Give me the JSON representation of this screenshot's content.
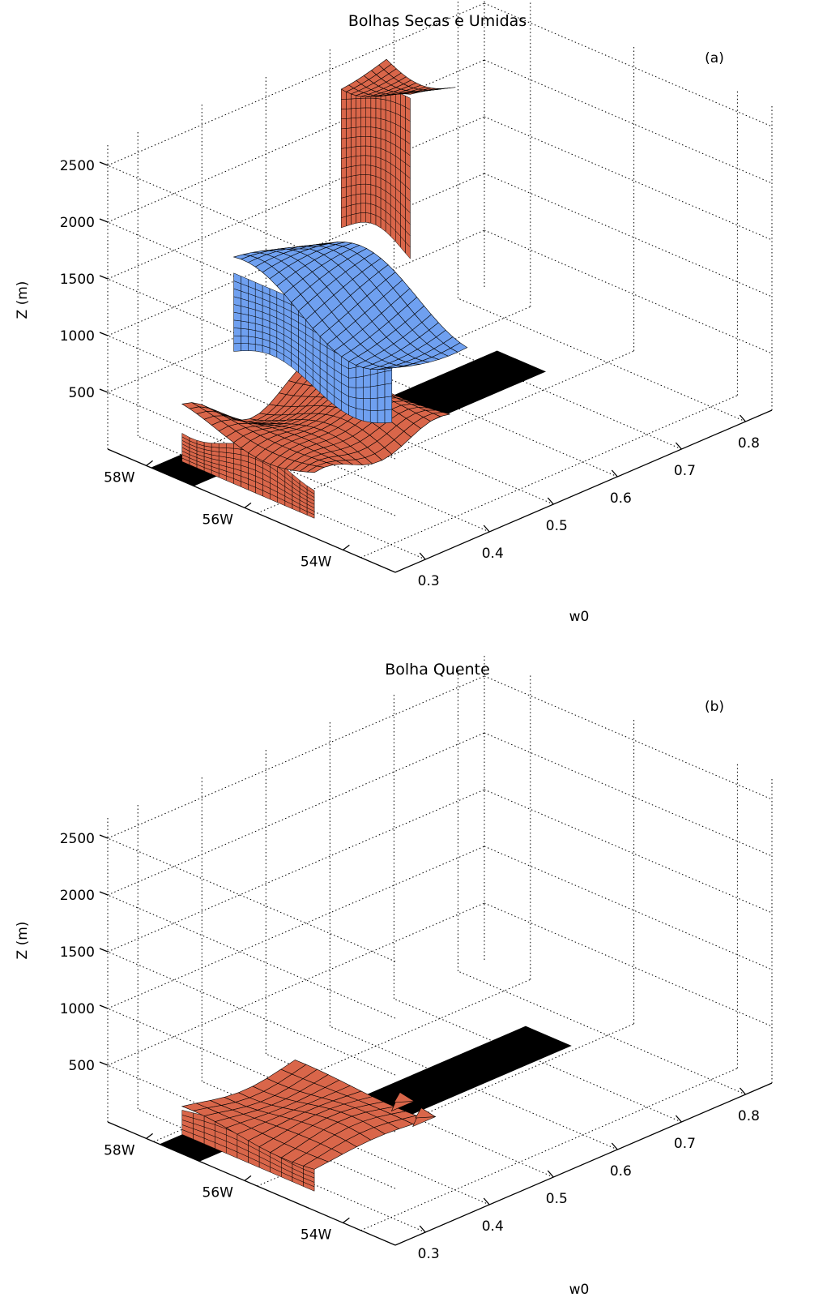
{
  "chart_data": [
    {
      "type": "surface3d",
      "panel_label": "(a)",
      "title": "Bolhas Secas e Umidas",
      "zlabel": "Z (m)",
      "xlabel": "w0",
      "z_ticks": [
        "500",
        "1000",
        "1500",
        "2000",
        "2500"
      ],
      "w0_ticks": [
        "0.3",
        "0.4",
        "0.5",
        "0.6",
        "0.7",
        "0.8"
      ],
      "lon_ticks": [
        "58W",
        "56W",
        "54W"
      ],
      "zlim": [
        0,
        2700
      ],
      "series": [
        {
          "color": "#d9664a",
          "approx_z_range": [
            0,
            500
          ]
        },
        {
          "color": "#6fa0f0",
          "approx_z_range": [
            300,
            2150
          ]
        },
        {
          "color": "#d9664a",
          "approx_z_range": [
            1050,
            2550
          ]
        }
      ]
    },
    {
      "type": "surface3d",
      "panel_label": "(b)",
      "title": "Bolha Quente",
      "zlabel": "Z (m)",
      "xlabel": "w0",
      "z_ticks": [
        "500",
        "1000",
        "1500",
        "2000",
        "2500"
      ],
      "w0_ticks": [
        "0.3",
        "0.4",
        "0.5",
        "0.6",
        "0.7",
        "0.8"
      ],
      "lon_ticks": [
        "58W",
        "56W",
        "54W"
      ],
      "zlim": [
        0,
        2700
      ],
      "series": [
        {
          "color": "#d9664a",
          "approx_z_range": [
            0,
            300
          ]
        }
      ]
    }
  ],
  "colors": {
    "warm": "#d9664a",
    "cold": "#6fa0f0",
    "mask": "#000000"
  }
}
